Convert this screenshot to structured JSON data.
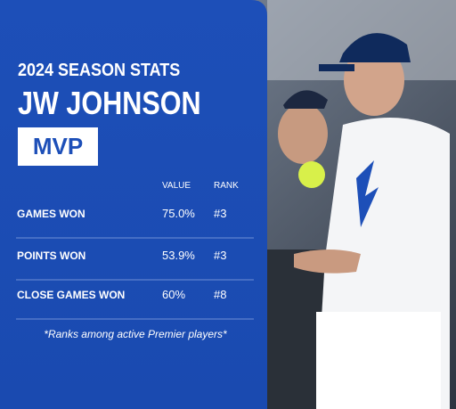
{
  "header": {
    "season": "2024 SEASON STATS",
    "player": "JW JOHNSON",
    "badge": "MVP"
  },
  "table": {
    "columns": [
      "VALUE",
      "RANK"
    ],
    "rows": [
      [
        "GAMES WON",
        "75.0%",
        "#3"
      ],
      [
        "POINTS WON",
        "53.9%",
        "#3"
      ],
      [
        "CLOSE GAMES WON",
        "60%",
        "#8"
      ]
    ]
  },
  "footnote": "*Ranks among active Premier players*"
}
